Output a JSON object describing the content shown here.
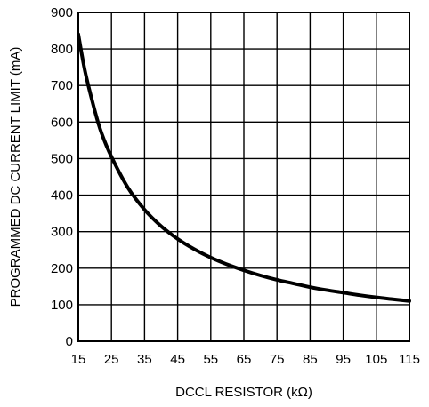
{
  "chart_data": {
    "type": "line",
    "title": "",
    "xlabel": "DCCL RESISTOR (kΩ)",
    "ylabel": "PROGRAMMED DC CURRENT LIMIT (mA)",
    "xlim": [
      15,
      115
    ],
    "ylim": [
      0,
      900
    ],
    "x_ticks": [
      15,
      25,
      35,
      45,
      55,
      65,
      75,
      85,
      95,
      105,
      115
    ],
    "y_ticks": [
      0,
      100,
      200,
      300,
      400,
      500,
      600,
      700,
      800,
      900
    ],
    "grid": true,
    "legend": "none",
    "line_color": "#000000",
    "series": [
      {
        "x": [
          15,
          17,
          20,
          22,
          25,
          30,
          35,
          40,
          45,
          50,
          55,
          60,
          65,
          70,
          75,
          80,
          85,
          90,
          95,
          100,
          105,
          110,
          115
        ],
        "values": [
          840,
          740,
          630,
          570,
          505,
          420,
          360,
          315,
          280,
          252,
          229,
          210,
          194,
          180,
          168,
          158,
          148,
          140,
          133,
          126,
          120,
          115,
          110
        ]
      }
    ]
  }
}
